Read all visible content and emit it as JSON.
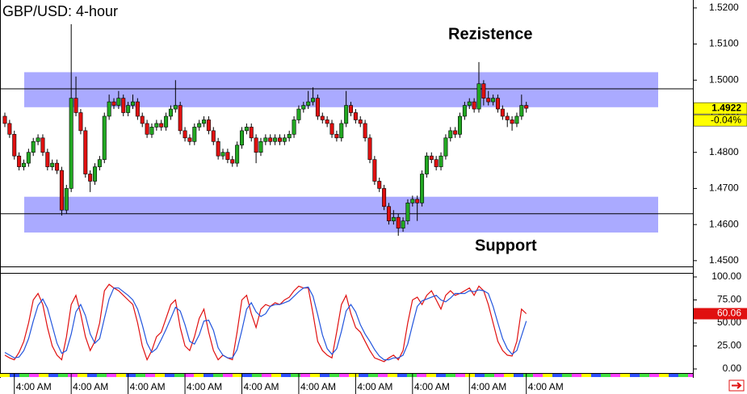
{
  "chart_data": [
    {
      "type": "candlestick",
      "title": "GBP/USD: 4-hour",
      "categories": [
        null,
        null,
        "4:00 AM",
        null,
        null,
        null,
        null,
        null,
        null,
        null,
        null,
        null,
        null,
        null,
        "4:00 AM",
        null,
        null,
        null,
        null,
        null,
        null,
        null,
        null,
        null,
        null,
        null,
        "4:00 AM",
        null,
        null,
        null,
        null,
        null,
        null,
        null,
        null,
        null,
        null,
        null,
        "4:00 AM",
        null,
        null,
        null,
        null,
        null,
        null,
        null,
        null,
        null,
        null,
        null,
        "4:00 AM",
        null,
        null,
        null,
        null,
        null,
        null,
        null,
        null,
        null,
        null,
        null,
        "4:00 AM",
        null,
        null,
        null,
        null,
        null,
        null,
        null,
        null,
        null,
        null,
        null,
        "4:00 AM",
        null,
        null,
        null,
        null,
        null,
        null,
        null,
        null,
        null,
        null,
        null,
        "4:00 AM",
        null,
        null,
        null,
        null,
        null,
        null,
        null,
        null,
        null,
        null,
        null,
        "4:00 AM",
        null,
        null,
        null,
        null,
        null,
        null,
        null,
        null,
        null,
        null,
        null,
        "4:00 AM"
      ],
      "open": [
        1.49,
        1.488,
        1.485,
        1.479,
        1.476,
        1.477,
        1.48,
        1.483,
        1.484,
        1.48,
        1.476,
        1.477,
        1.475,
        1.464,
        1.47,
        1.495,
        1.491,
        1.486,
        1.474,
        1.472,
        1.476,
        1.478,
        1.49,
        1.494,
        1.493,
        1.495,
        1.491,
        1.493,
        1.494,
        1.49,
        1.488,
        1.485,
        1.487,
        1.488,
        1.487,
        1.49,
        1.492,
        1.493,
        1.486,
        1.484,
        1.483,
        1.487,
        1.488,
        1.489,
        1.486,
        1.483,
        1.479,
        1.48,
        1.478,
        1.477,
        1.482,
        1.486,
        1.487,
        1.484,
        1.48,
        1.483,
        1.484,
        1.483,
        1.484,
        1.483,
        1.484,
        1.485,
        1.489,
        1.492,
        1.493,
        1.494,
        1.495,
        1.49,
        1.489,
        1.488,
        1.485,
        1.484,
        1.488,
        1.493,
        1.491,
        1.489,
        1.488,
        1.484,
        1.478,
        1.472,
        1.47,
        1.465,
        1.461,
        1.462,
        1.459,
        1.461,
        1.466,
        1.467,
        1.466,
        1.474,
        1.479,
        1.478,
        1.476,
        1.479,
        1.484,
        1.486,
        1.485,
        1.49,
        1.493,
        1.494,
        1.492,
        1.499,
        1.495,
        1.494,
        1.495,
        1.492,
        1.49,
        1.489,
        1.488,
        1.49,
        1.493
      ],
      "high": [
        1.491,
        1.489,
        1.486,
        1.48,
        1.478,
        1.481,
        1.484,
        1.485,
        1.485,
        1.481,
        1.478,
        1.478,
        1.476,
        1.471,
        1.5155,
        1.501,
        1.492,
        1.487,
        1.475,
        1.477,
        1.479,
        1.491,
        1.496,
        1.495,
        1.497,
        1.496,
        1.494,
        1.496,
        1.495,
        1.491,
        1.489,
        1.488,
        1.489,
        1.489,
        1.491,
        1.493,
        1.5,
        1.494,
        1.487,
        1.485,
        1.488,
        1.489,
        1.49,
        1.49,
        1.487,
        1.484,
        1.481,
        1.481,
        1.479,
        1.483,
        1.487,
        1.488,
        1.488,
        1.485,
        1.484,
        1.485,
        1.485,
        1.485,
        1.485,
        1.485,
        1.486,
        1.49,
        1.493,
        1.494,
        1.497,
        1.498,
        1.496,
        1.491,
        1.49,
        1.489,
        1.486,
        1.489,
        1.497,
        1.494,
        1.492,
        1.49,
        1.489,
        1.485,
        1.479,
        1.473,
        1.471,
        1.466,
        1.464,
        1.463,
        1.462,
        1.467,
        1.468,
        1.468,
        1.475,
        1.48,
        1.48,
        1.479,
        1.48,
        1.485,
        1.487,
        1.487,
        1.491,
        1.494,
        1.495,
        1.495,
        1.505,
        1.5,
        1.497,
        1.496,
        1.496,
        1.493,
        1.491,
        1.49,
        1.491,
        1.496,
        1.494
      ],
      "low": [
        1.487,
        1.484,
        1.478,
        1.475,
        1.475,
        1.476,
        1.479,
        1.482,
        1.479,
        1.475,
        1.475,
        1.474,
        1.4625,
        1.463,
        1.469,
        1.49,
        1.485,
        1.473,
        1.469,
        1.471,
        1.475,
        1.477,
        1.489,
        1.492,
        1.492,
        1.49,
        1.49,
        1.492,
        1.489,
        1.487,
        1.484,
        1.484,
        1.486,
        1.486,
        1.486,
        1.489,
        1.491,
        1.485,
        1.483,
        1.482,
        1.482,
        1.486,
        1.487,
        1.485,
        1.482,
        1.478,
        1.478,
        1.477,
        1.476,
        1.476,
        1.481,
        1.485,
        1.483,
        1.477,
        1.479,
        1.482,
        1.482,
        1.482,
        1.482,
        1.482,
        1.483,
        1.484,
        1.488,
        1.491,
        1.492,
        1.493,
        1.489,
        1.488,
        1.487,
        1.484,
        1.483,
        1.483,
        1.487,
        1.49,
        1.488,
        1.487,
        1.483,
        1.477,
        1.471,
        1.469,
        1.464,
        1.46,
        1.46,
        1.4569,
        1.458,
        1.46,
        1.465,
        1.461,
        1.465,
        1.473,
        1.477,
        1.475,
        1.475,
        1.478,
        1.483,
        1.484,
        1.484,
        1.489,
        1.492,
        1.491,
        1.491,
        1.493,
        1.493,
        1.493,
        1.491,
        1.489,
        1.487,
        1.486,
        1.487,
        1.489,
        1.491
      ],
      "close": [
        1.488,
        1.485,
        1.479,
        1.476,
        1.477,
        1.48,
        1.483,
        1.484,
        1.48,
        1.476,
        1.477,
        1.475,
        1.464,
        1.47,
        1.495,
        1.491,
        1.486,
        1.474,
        1.472,
        1.476,
        1.478,
        1.49,
        1.494,
        1.493,
        1.495,
        1.491,
        1.493,
        1.494,
        1.49,
        1.488,
        1.485,
        1.487,
        1.488,
        1.487,
        1.49,
        1.492,
        1.493,
        1.486,
        1.484,
        1.483,
        1.487,
        1.488,
        1.489,
        1.486,
        1.483,
        1.479,
        1.48,
        1.478,
        1.477,
        1.482,
        1.486,
        1.487,
        1.484,
        1.48,
        1.483,
        1.484,
        1.483,
        1.484,
        1.483,
        1.484,
        1.485,
        1.489,
        1.492,
        1.493,
        1.494,
        1.495,
        1.49,
        1.489,
        1.488,
        1.485,
        1.484,
        1.488,
        1.493,
        1.491,
        1.489,
        1.488,
        1.484,
        1.478,
        1.472,
        1.47,
        1.465,
        1.461,
        1.462,
        1.459,
        1.461,
        1.466,
        1.467,
        1.466,
        1.474,
        1.479,
        1.478,
        1.476,
        1.479,
        1.484,
        1.486,
        1.485,
        1.49,
        1.493,
        1.494,
        1.492,
        1.499,
        1.495,
        1.494,
        1.495,
        1.492,
        1.49,
        1.489,
        1.488,
        1.49,
        1.493,
        1.4922
      ],
      "change": "-0.04%",
      "up_color": "#22a822",
      "down_color": "#e01010",
      "ylim": [
        1.4484,
        1.5222
      ],
      "yticks": [
        {
          "value": 1.52,
          "label": "1.5200"
        },
        {
          "value": 1.51,
          "label": "1.5100"
        },
        {
          "value": 1.5,
          "label": "1.5000"
        },
        {
          "value": 1.49,
          "label": "1.4900"
        },
        {
          "value": 1.48,
          "label": "1.4800"
        },
        {
          "value": 1.47,
          "label": "1.4700"
        },
        {
          "value": 1.46,
          "label": "1.4600"
        },
        {
          "value": 1.45,
          "label": "1.4500"
        }
      ],
      "annotations": [
        {
          "text": "Rezistence",
          "band": [
            1.4925,
            1.5022
          ],
          "level": 1.4976,
          "color": "#aaaaff"
        },
        {
          "text": "Support",
          "band": [
            1.4578,
            1.4677
          ],
          "level": 1.463,
          "color": "#aaaaff"
        }
      ]
    },
    {
      "type": "line",
      "series": [
        {
          "color": "#e01010",
          "values": [
            15,
            12,
            10,
            18,
            30,
            50,
            75,
            82,
            70,
            45,
            25,
            15,
            10,
            35,
            70,
            80,
            60,
            35,
            20,
            30,
            50,
            85,
            92,
            88,
            85,
            80,
            75,
            70,
            50,
            25,
            10,
            20,
            35,
            40,
            55,
            70,
            75,
            45,
            25,
            20,
            35,
            55,
            65,
            40,
            20,
            10,
            15,
            12,
            10,
            40,
            75,
            80,
            60,
            45,
            65,
            70,
            68,
            72,
            70,
            75,
            78,
            85,
            90,
            88,
            88,
            60,
            30,
            20,
            15,
            12,
            40,
            70,
            80,
            60,
            45,
            40,
            30,
            20,
            12,
            10,
            8,
            12,
            15,
            10,
            20,
            50,
            75,
            78,
            70,
            80,
            85,
            75,
            65,
            80,
            85,
            80,
            82,
            85,
            88,
            80,
            90,
            85,
            70,
            50,
            30,
            20,
            15,
            14,
            30,
            65,
            60.06
          ]
        },
        {
          "color": "#2255dd",
          "values": [
            18,
            15,
            12,
            13,
            20,
            33,
            52,
            69,
            76,
            66,
            47,
            28,
            17,
            20,
            38,
            62,
            70,
            58,
            38,
            28,
            33,
            55,
            76,
            88,
            88,
            84,
            80,
            75,
            65,
            48,
            28,
            18,
            22,
            32,
            43,
            55,
            67,
            63,
            48,
            30,
            27,
            37,
            52,
            53,
            42,
            23,
            15,
            12,
            12,
            21,
            42,
            65,
            72,
            62,
            57,
            60,
            68,
            70,
            70,
            72,
            74,
            79,
            84,
            88,
            89,
            79,
            59,
            37,
            22,
            16,
            22,
            41,
            63,
            70,
            62,
            48,
            38,
            30,
            21,
            14,
            10,
            10,
            12,
            12,
            15,
            27,
            48,
            68,
            74,
            76,
            78,
            80,
            75,
            73,
            77,
            82,
            82,
            82,
            85,
            84,
            86,
            85,
            82,
            68,
            50,
            33,
            22,
            16,
            20,
            36,
            52
          ]
        }
      ],
      "ylim": [
        -4.4,
        104.4
      ],
      "yticks": [
        {
          "value": 100,
          "label": "100.00"
        },
        {
          "value": 75,
          "label": "75.00"
        },
        {
          "value": 50,
          "label": "50.00"
        },
        {
          "value": 25,
          "label": "25.00"
        },
        {
          "value": 0,
          "label": "0.00"
        }
      ]
    }
  ]
}
